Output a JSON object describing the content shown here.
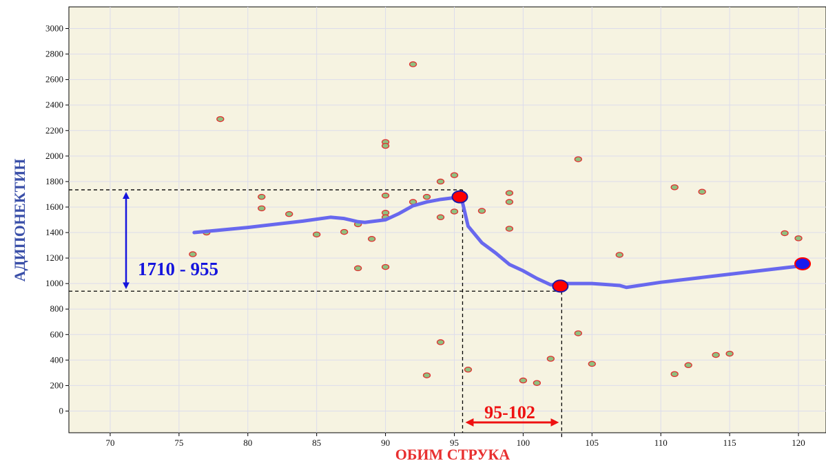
{
  "chart_data": {
    "type": "scatter",
    "title": "",
    "xlabel": "ОБИМ СТРУКА",
    "ylabel": "АДИПОНЕКТИН",
    "xlim": [
      67,
      122
    ],
    "ylim": [
      -170,
      3170
    ],
    "x_ticks": [
      70,
      75,
      80,
      85,
      90,
      95,
      100,
      105,
      110,
      115,
      120
    ],
    "y_ticks": [
      0,
      200,
      400,
      600,
      800,
      1000,
      1200,
      1400,
      1600,
      1800,
      2000,
      2200,
      2400,
      2600,
      2800,
      3000
    ],
    "grid": true,
    "colors": {
      "background": "#f6f3e1",
      "grid": "#dcdcec",
      "point_fill": "#90c080",
      "point_stroke": "#e03030",
      "trend_line": "#6868ee",
      "marker_fill": "#ff0000",
      "marker_stroke": "#1a1aa8",
      "marker_blue": "#1a1aee",
      "annotation_blue": "#1515dd",
      "annotation_red": "#ee1111",
      "ylabel_color": "#3a4fa8",
      "xlabel_color": "#e83030"
    },
    "points": [
      [
        76,
        1230
      ],
      [
        77,
        1400
      ],
      [
        78,
        2290
      ],
      [
        81,
        1680
      ],
      [
        81,
        1590
      ],
      [
        83,
        1545
      ],
      [
        85,
        1385
      ],
      [
        87,
        1405
      ],
      [
        88,
        1465
      ],
      [
        88,
        1120
      ],
      [
        89,
        1350
      ],
      [
        90,
        2110
      ],
      [
        90,
        2080
      ],
      [
        90,
        1690
      ],
      [
        90,
        1555
      ],
      [
        90,
        1520
      ],
      [
        90,
        1130
      ],
      [
        92,
        2720
      ],
      [
        92,
        1640
      ],
      [
        93,
        1680
      ],
      [
        93,
        280
      ],
      [
        94,
        1800
      ],
      [
        94,
        1520
      ],
      [
        94,
        540
      ],
      [
        95,
        1850
      ],
      [
        95,
        1565
      ],
      [
        96,
        325
      ],
      [
        97,
        1570
      ],
      [
        99,
        1710
      ],
      [
        99,
        1640
      ],
      [
        99,
        1430
      ],
      [
        100,
        240
      ],
      [
        101,
        220
      ],
      [
        102,
        410
      ],
      [
        104,
        1975
      ],
      [
        104,
        610
      ],
      [
        105,
        370
      ],
      [
        107,
        1225
      ],
      [
        111,
        1755
      ],
      [
        111,
        290
      ],
      [
        112,
        360
      ],
      [
        113,
        1720
      ],
      [
        114,
        440
      ],
      [
        115,
        450
      ],
      [
        119,
        1395
      ],
      [
        120,
        1355
      ]
    ],
    "trend_line": [
      [
        76.1,
        1400
      ],
      [
        80,
        1440
      ],
      [
        84,
        1490
      ],
      [
        86,
        1520
      ],
      [
        87,
        1510
      ],
      [
        88,
        1485
      ],
      [
        88.5,
        1480
      ],
      [
        90,
        1500
      ],
      [
        91,
        1550
      ],
      [
        92,
        1610
      ],
      [
        93,
        1640
      ],
      [
        94,
        1660
      ],
      [
        95.5,
        1680
      ],
      [
        96,
        1450
      ],
      [
        97,
        1320
      ],
      [
        98,
        1240
      ],
      [
        99,
        1150
      ],
      [
        100,
        1100
      ],
      [
        101,
        1040
      ],
      [
        102,
        990
      ],
      [
        103,
        1000
      ],
      [
        104,
        1000
      ],
      [
        105,
        1000
      ],
      [
        107,
        985
      ],
      [
        107.5,
        970
      ],
      [
        110,
        1010
      ],
      [
        120.3,
        1140
      ]
    ],
    "highlight_markers": [
      {
        "x": 95.4,
        "y": 1680,
        "style": "red"
      },
      {
        "x": 102.7,
        "y": 980,
        "style": "red"
      },
      {
        "x": 120.3,
        "y": 1155,
        "style": "blue"
      }
    ],
    "reference_lines": {
      "y_high": 1735,
      "y_low": 940,
      "x_low": 95.6,
      "x_high": 102.8
    },
    "annotations": {
      "y_range_label": "1710 - 955",
      "x_range_label": "95-102"
    }
  }
}
